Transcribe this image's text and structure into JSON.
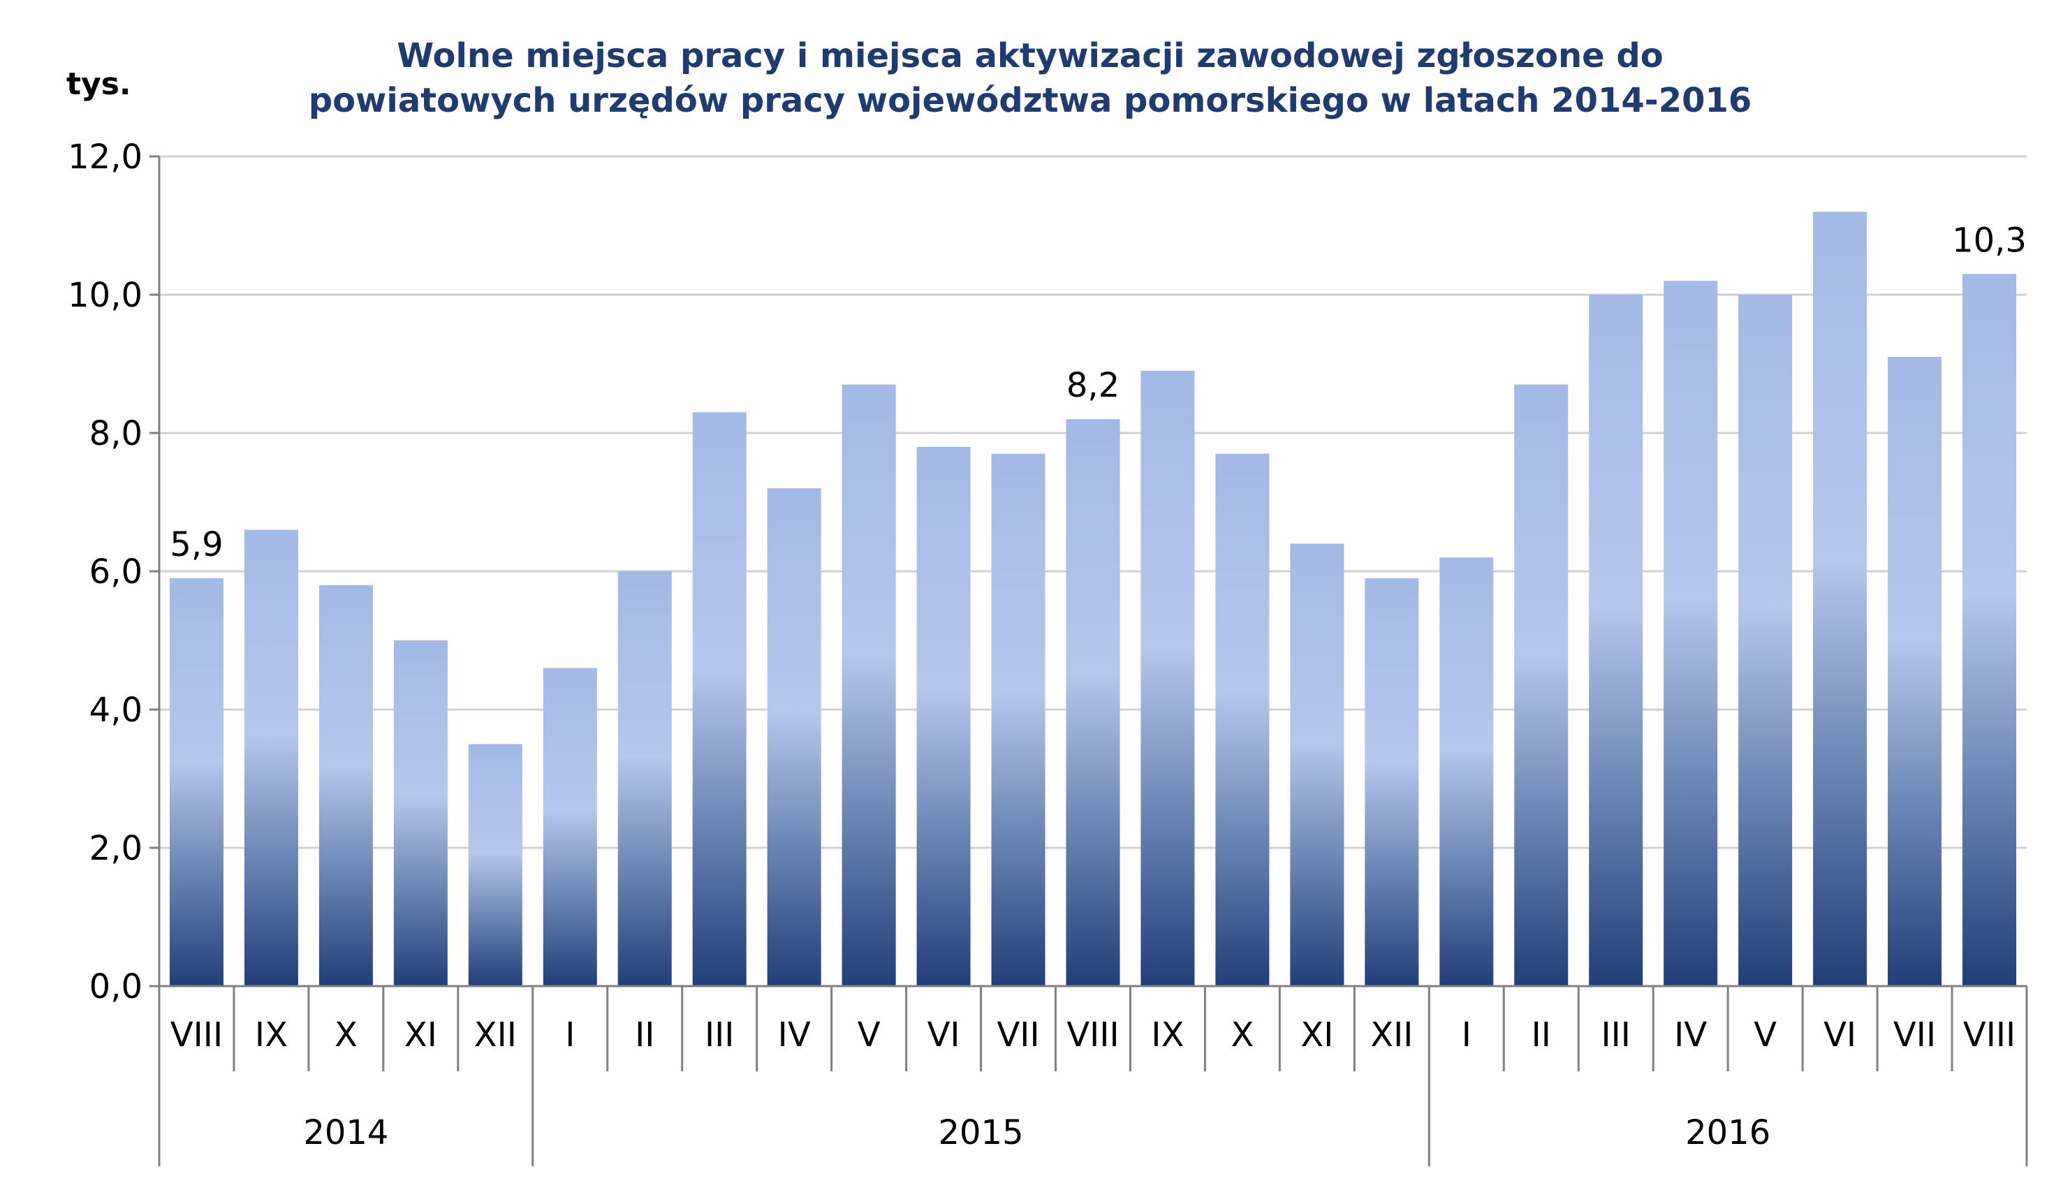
{
  "chart_data": {
    "type": "bar",
    "title_lines": [
      "Wolne miejsca pracy i miejsca aktywizacji zawodowej zgłoszone do",
      "powiatowych urzędów pracy województwa pomorskiego w latach 2014-2016"
    ],
    "ylabel": "tys.",
    "xlabel": "",
    "ylim": [
      0,
      12
    ],
    "yticks": [
      "0,0",
      "2,0",
      "4,0",
      "6,0",
      "8,0",
      "10,0",
      "12,0"
    ],
    "grid": true,
    "categories": [
      "VIII",
      "IX",
      "X",
      "XI",
      "XII",
      "I",
      "II",
      "III",
      "IV",
      "V",
      "VI",
      "VII",
      "VIII",
      "IX",
      "X",
      "XI",
      "XII",
      "I",
      "II",
      "III",
      "IV",
      "V",
      "VI",
      "VII",
      "VIII"
    ],
    "values": [
      5.9,
      6.6,
      5.8,
      5.0,
      3.5,
      4.6,
      6.0,
      8.3,
      7.2,
      8.7,
      7.8,
      7.7,
      8.2,
      8.9,
      7.7,
      6.4,
      5.9,
      6.2,
      8.7,
      10.0,
      10.2,
      10.0,
      11.2,
      9.1,
      10.3
    ],
    "groups": [
      {
        "label": "2014",
        "count": 5
      },
      {
        "label": "2015",
        "count": 12
      },
      {
        "label": "2016",
        "count": 8
      }
    ],
    "data_labels": [
      {
        "index": 0,
        "text": "5,9"
      },
      {
        "index": 12,
        "text": "8,2"
      },
      {
        "index": 24,
        "text": "10,3"
      }
    ],
    "colors": {
      "bar_top": "#a3b9e6",
      "bar_mid": "#b4c7ec",
      "bar_bottom": "#203f78",
      "title": "#1f3b73",
      "grid": "#d0d0d0",
      "axis": "#808080"
    }
  }
}
